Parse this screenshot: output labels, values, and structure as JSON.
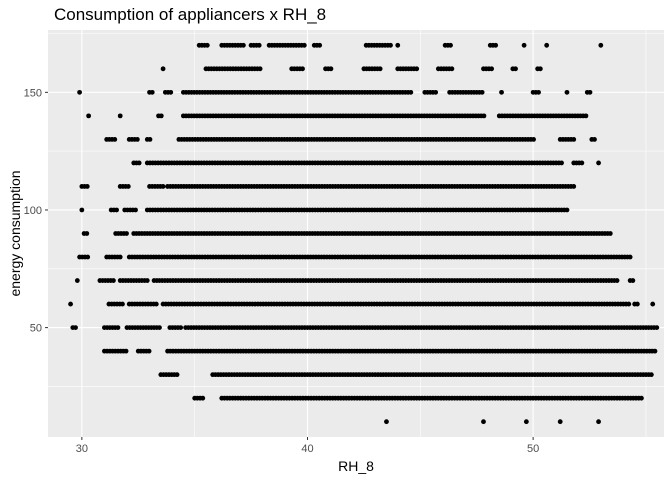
{
  "chart_data": {
    "type": "scatter",
    "title": "Consumption of appliancers x RH_8",
    "xlabel": "RH_8",
    "ylabel": "energy consumption",
    "xlim": [
      28.5,
      55.8
    ],
    "ylim": [
      3.5,
      176.5
    ],
    "x_ticks": [
      30,
      40,
      50
    ],
    "y_ticks": [
      50,
      100,
      150
    ],
    "grid": true,
    "panel_color": "#ebebeb",
    "grid_color": "#ffffff",
    "point_color": "#000000",
    "bands": [
      {
        "y": 10,
        "ranges": [
          [
            43.5,
            43.5
          ],
          [
            47.8,
            47.8
          ],
          [
            49.7,
            49.7
          ],
          [
            51.2,
            51.2
          ],
          [
            52.9,
            52.9
          ]
        ]
      },
      {
        "y": 20,
        "ranges": [
          [
            35.0,
            35.4
          ],
          [
            36.2,
            54.9
          ]
        ]
      },
      {
        "y": 30,
        "ranges": [
          [
            33.5,
            34.3
          ],
          [
            35.8,
            55.3
          ]
        ]
      },
      {
        "y": 40,
        "ranges": [
          [
            31.0,
            32.0
          ],
          [
            32.5,
            33.0
          ],
          [
            33.8,
            55.5
          ]
        ]
      },
      {
        "y": 50,
        "ranges": [
          [
            29.6,
            29.8
          ],
          [
            31.0,
            31.6
          ],
          [
            32.0,
            33.5
          ],
          [
            33.9,
            34.4
          ],
          [
            34.6,
            55.5
          ]
        ]
      },
      {
        "y": 60,
        "ranges": [
          [
            29.5,
            29.6
          ],
          [
            31.2,
            31.8
          ],
          [
            32.1,
            33.3
          ],
          [
            33.6,
            54.3
          ],
          [
            54.5,
            54.7
          ],
          [
            55.3,
            55.4
          ]
        ]
      },
      {
        "y": 70,
        "ranges": [
          [
            29.8,
            29.8
          ],
          [
            30.8,
            31.4
          ],
          [
            31.7,
            33.0
          ],
          [
            33.2,
            53.8
          ],
          [
            54.3,
            54.5
          ]
        ]
      },
      {
        "y": 80,
        "ranges": [
          [
            29.9,
            30.3
          ],
          [
            31.1,
            31.8
          ],
          [
            32.1,
            54.4
          ]
        ]
      },
      {
        "y": 90,
        "ranges": [
          [
            30.1,
            30.3
          ],
          [
            31.5,
            32.0
          ],
          [
            32.3,
            53.5
          ]
        ]
      },
      {
        "y": 100,
        "ranges": [
          [
            30.0,
            30.0
          ],
          [
            31.3,
            31.6
          ],
          [
            31.9,
            32.4
          ],
          [
            32.9,
            51.5
          ]
        ]
      },
      {
        "y": 110,
        "ranges": [
          [
            30.0,
            30.3
          ],
          [
            31.7,
            32.1
          ],
          [
            33.0,
            33.6
          ],
          [
            33.8,
            51.8
          ]
        ]
      },
      {
        "y": 120,
        "ranges": [
          [
            32.3,
            32.6
          ],
          [
            32.9,
            51.3
          ],
          [
            51.8,
            52.2
          ],
          [
            52.9,
            53.0
          ]
        ]
      },
      {
        "y": 130,
        "ranges": [
          [
            31.1,
            31.5
          ],
          [
            32.1,
            32.5
          ],
          [
            32.9,
            33.1
          ],
          [
            34.3,
            50.1
          ],
          [
            51.2,
            51.8
          ],
          [
            52.6,
            52.8
          ]
        ]
      },
      {
        "y": 140,
        "ranges": [
          [
            30.3,
            30.3
          ],
          [
            31.7,
            31.8
          ],
          [
            33.4,
            33.6
          ],
          [
            34.5,
            47.9
          ],
          [
            48.5,
            52.4
          ]
        ]
      },
      {
        "y": 150,
        "ranges": [
          [
            29.9,
            29.9
          ],
          [
            33.0,
            33.2
          ],
          [
            33.7,
            34.0
          ],
          [
            34.5,
            44.6
          ],
          [
            45.2,
            45.7
          ],
          [
            46.3,
            47.8
          ],
          [
            48.6,
            48.7
          ],
          [
            50.0,
            50.3
          ],
          [
            51.5,
            51.6
          ],
          [
            52.4,
            52.6
          ]
        ]
      },
      {
        "y": 160,
        "ranges": [
          [
            33.6,
            33.6
          ],
          [
            35.5,
            38.0
          ],
          [
            39.3,
            39.8
          ],
          [
            40.8,
            41.1
          ],
          [
            42.5,
            43.3
          ],
          [
            44.0,
            44.9
          ],
          [
            45.8,
            46.4
          ],
          [
            47.8,
            48.2
          ],
          [
            49.1,
            49.3
          ],
          [
            50.2,
            50.4
          ]
        ]
      },
      {
        "y": 170,
        "ranges": [
          [
            35.2,
            35.6
          ],
          [
            36.2,
            37.2
          ],
          [
            37.5,
            37.9
          ],
          [
            38.3,
            39.9
          ],
          [
            40.3,
            40.6
          ],
          [
            42.6,
            43.7
          ],
          [
            44.0,
            44.1
          ],
          [
            46.1,
            46.4
          ],
          [
            48.1,
            48.4
          ],
          [
            49.6,
            49.6
          ],
          [
            50.6,
            50.7
          ],
          [
            53.0,
            53.1
          ]
        ]
      }
    ]
  }
}
